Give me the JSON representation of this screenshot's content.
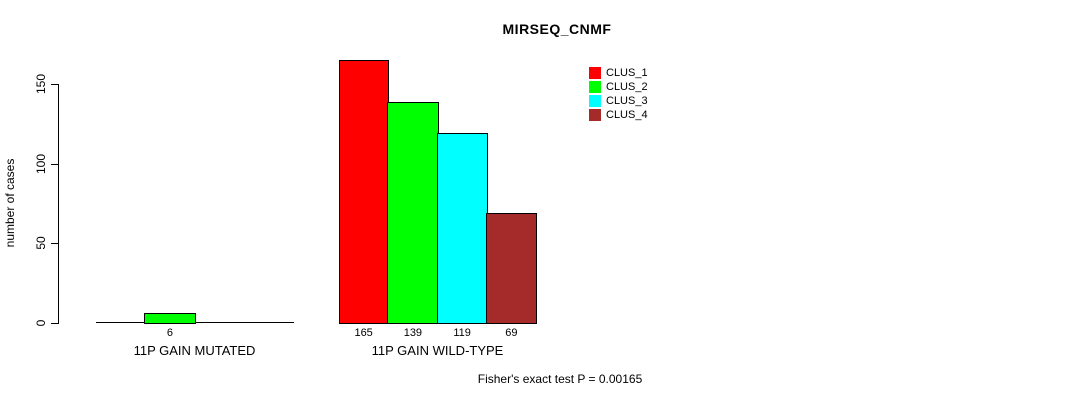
{
  "chart_data": {
    "type": "bar",
    "title": "MIRSEQ_CNMF",
    "ylabel": "number of cases",
    "xlabel": "",
    "footer": "Fisher's exact test P = 0.00165",
    "categories": [
      "11P GAIN MUTATED",
      "11P GAIN WILD-TYPE"
    ],
    "series": [
      {
        "name": "CLUS_1",
        "color": "#ff0000",
        "values": [
          0,
          165
        ]
      },
      {
        "name": "CLUS_2",
        "color": "#00ff00",
        "values": [
          6,
          139
        ]
      },
      {
        "name": "CLUS_3",
        "color": "#00ffff",
        "values": [
          0,
          119
        ]
      },
      {
        "name": "CLUS_4",
        "color": "#a52a2a",
        "values": [
          0,
          69
        ]
      }
    ],
    "value_labels": [
      [
        "",
        "6",
        "",
        ""
      ],
      [
        "165",
        "139",
        "119",
        "69"
      ]
    ],
    "yticks": [
      0,
      50,
      100,
      150
    ],
    "ylim": [
      0,
      165
    ],
    "grid": false,
    "legend_position": "top-right",
    "colors": {
      "axis": "#000000",
      "text": "#000000",
      "background": "#ffffff"
    }
  }
}
